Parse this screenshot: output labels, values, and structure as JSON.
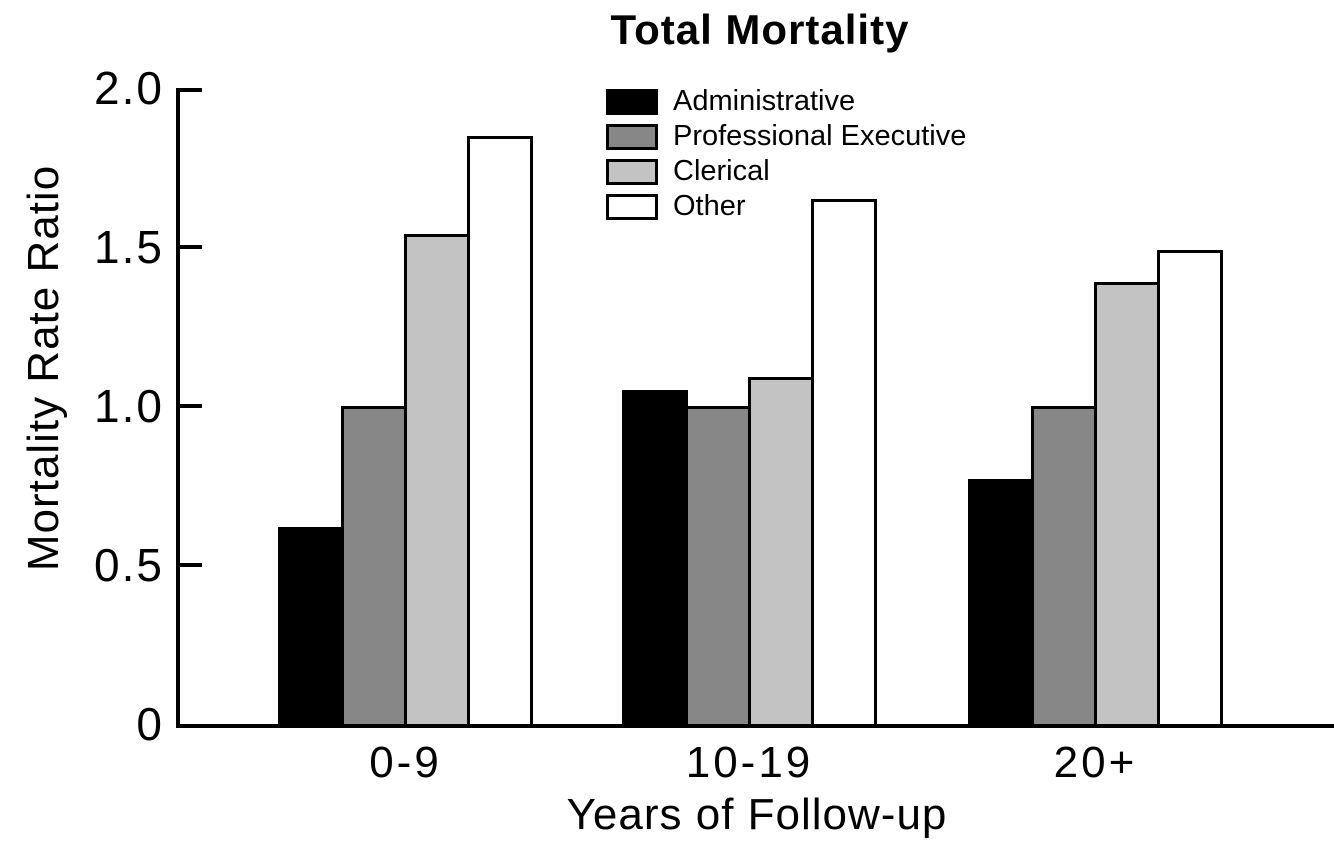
{
  "chart_data": {
    "type": "bar",
    "title": "Total Mortality",
    "xlabel": "Years of Follow-up",
    "ylabel": "Mortality Rate Ratio",
    "categories": [
      "0-9",
      "10-19",
      "20+"
    ],
    "yticks": [
      "2.0",
      "1.5",
      "1.0",
      "0.5",
      "0"
    ],
    "ytick_values": [
      2.0,
      1.5,
      1.0,
      0.5,
      0
    ],
    "ylim": [
      0,
      2.0
    ],
    "grid": false,
    "legend_position": "top-center-inside",
    "bar_outline_color": "#000000",
    "series": [
      {
        "name": "Administrative",
        "color": "#000000",
        "values": [
          0.62,
          1.05,
          0.77
        ]
      },
      {
        "name": "Professional Executive",
        "color": "#878787",
        "values": [
          1.0,
          1.0,
          1.0
        ]
      },
      {
        "name": "Clerical",
        "color": "#c3c3c3",
        "values": [
          1.54,
          1.09,
          1.39
        ]
      },
      {
        "name": "Other",
        "color": "#ffffff",
        "values": [
          1.85,
          1.65,
          1.49
        ]
      }
    ]
  }
}
